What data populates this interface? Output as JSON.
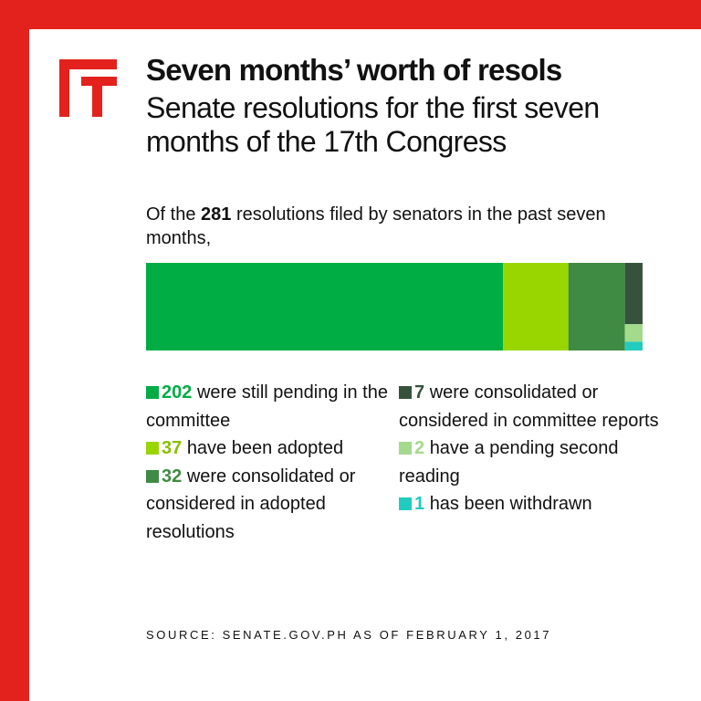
{
  "title": "Seven months’ worth of resols",
  "subtitle": "Senate resolutions for the first seven months of the 17th Congress",
  "intro": {
    "before": "Of the ",
    "total": "281",
    "after": " resolutions filed by senators in the past seven months,"
  },
  "chart_data": {
    "type": "bar",
    "orientation": "horizontal-stacked",
    "total": 281,
    "segments": [
      {
        "value": 202,
        "label": "were still pending in the committee",
        "color": "#00ad45"
      },
      {
        "value": 37,
        "label": "have been adopted",
        "color": "#99d600"
      },
      {
        "value": 32,
        "label": "were consolidated or considered in adopted resolutions",
        "color": "#3f8b43"
      },
      {
        "value": 7,
        "label": "were consolidated or considered in committee reports",
        "color": "#36523b"
      },
      {
        "value": 2,
        "label": "have a pending second reading",
        "color": "#a3da8c"
      },
      {
        "value": 1,
        "label": "has been withdrawn",
        "color": "#22cbc0"
      }
    ]
  },
  "source": "SOURCE: SENATE.GOV.PH AS OF FEBRUARY 1, 2017",
  "colors": {
    "frame": "#e3221d",
    "logo": "#e3221d"
  }
}
